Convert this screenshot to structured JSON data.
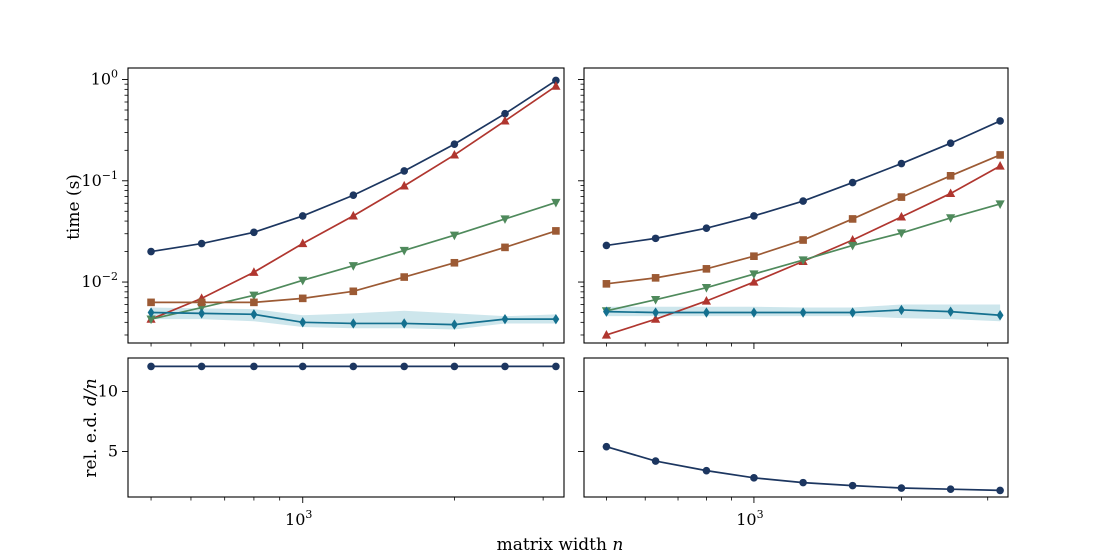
{
  "figure": {
    "xlabel": "matrix width",
    "xlabel_var": "n",
    "top_ylabel": "time (s)",
    "bottom_ylabel_prefix": "rel. e.d.",
    "bottom_ylabel_var": "d/n"
  },
  "colors": {
    "navy": "#1c3660",
    "red": "#b0362f",
    "green": "#4f8a5c",
    "brown": "#9c5a34",
    "teal": "#14708f",
    "band": "#bcdde6"
  },
  "chart_data": [
    {
      "panel": "top-left",
      "type": "line",
      "xscale": "log",
      "yscale": "log",
      "xlim": [
        450,
        3300
      ],
      "ylim": [
        0.0025,
        1.3
      ],
      "ylabel": "time (s)",
      "x": [
        500,
        630,
        800,
        1000,
        1260,
        1590,
        2000,
        2520,
        3180
      ],
      "yticks": [
        {
          "value": 1,
          "base": "10",
          "exp": "0"
        },
        {
          "value": 0.1,
          "base": "10",
          "exp": "−1"
        },
        {
          "value": 0.01,
          "base": "10",
          "exp": "−2"
        }
      ],
      "series": [
        {
          "name": "navy-circle",
          "color": "#1c3660",
          "marker": "circle",
          "values": [
            0.02,
            0.024,
            0.031,
            0.045,
            0.072,
            0.125,
            0.23,
            0.46,
            0.98
          ]
        },
        {
          "name": "red-triangle-up",
          "color": "#b0362f",
          "marker": "triangle-up",
          "values": [
            0.0043,
            0.0069,
            0.0125,
            0.024,
            0.045,
            0.089,
            0.18,
            0.39,
            0.86
          ]
        },
        {
          "name": "green-triangle-down",
          "color": "#4f8a5c",
          "marker": "triangle-down",
          "values": [
            0.0043,
            0.0056,
            0.0074,
            0.0104,
            0.0145,
            0.0205,
            0.029,
            0.042,
            0.061
          ]
        },
        {
          "name": "brown-square",
          "color": "#9c5a34",
          "marker": "square",
          "values": [
            0.0063,
            0.0063,
            0.0063,
            0.0069,
            0.0081,
            0.0112,
            0.0155,
            0.022,
            0.032
          ]
        },
        {
          "name": "teal-diamond",
          "color": "#14708f",
          "marker": "diamond",
          "values": [
            0.005,
            0.0049,
            0.0048,
            0.004,
            0.0039,
            0.0039,
            0.0038,
            0.0043,
            0.0043
          ],
          "band_low": [
            0.0043,
            0.0043,
            0.0041,
            0.0036,
            0.0035,
            0.0035,
            0.0034,
            0.0039,
            0.0039
          ],
          "band_high": [
            0.0056,
            0.0055,
            0.0054,
            0.0047,
            0.0049,
            0.0052,
            0.0049,
            0.0046,
            0.0048
          ]
        }
      ]
    },
    {
      "panel": "top-right",
      "type": "line",
      "xscale": "log",
      "yscale": "log",
      "xlim": [
        450,
        3300
      ],
      "ylim": [
        0.0025,
        1.3
      ],
      "x": [
        500,
        630,
        800,
        1000,
        1260,
        1590,
        2000,
        2520,
        3180
      ],
      "series": [
        {
          "name": "navy-circle",
          "color": "#1c3660",
          "marker": "circle",
          "values": [
            0.023,
            0.027,
            0.034,
            0.045,
            0.063,
            0.096,
            0.148,
            0.235,
            0.39
          ]
        },
        {
          "name": "brown-square",
          "color": "#9c5a34",
          "marker": "square",
          "values": [
            0.0096,
            0.011,
            0.0135,
            0.018,
            0.026,
            0.042,
            0.069,
            0.112,
            0.18
          ]
        },
        {
          "name": "red-triangle-up",
          "color": "#b0362f",
          "marker": "triangle-up",
          "values": [
            0.003,
            0.0043,
            0.0065,
            0.01,
            0.016,
            0.026,
            0.044,
            0.075,
            0.14
          ]
        },
        {
          "name": "green-triangle-down",
          "color": "#4f8a5c",
          "marker": "triangle-down",
          "values": [
            0.0052,
            0.0067,
            0.0088,
            0.012,
            0.0165,
            0.023,
            0.0305,
            0.043,
            0.059
          ]
        },
        {
          "name": "teal-diamond",
          "color": "#14708f",
          "marker": "diamond",
          "values": [
            0.0051,
            0.005,
            0.005,
            0.005,
            0.005,
            0.005,
            0.0053,
            0.0051,
            0.0047
          ],
          "band_low": [
            0.0046,
            0.0046,
            0.0046,
            0.0046,
            0.0046,
            0.0046,
            0.0044,
            0.0043,
            0.0041
          ],
          "band_high": [
            0.0057,
            0.0057,
            0.0057,
            0.0057,
            0.0056,
            0.0056,
            0.006,
            0.006,
            0.006
          ]
        }
      ]
    },
    {
      "panel": "bottom-left",
      "type": "line",
      "xscale": "log",
      "yscale": "linear",
      "xlim": [
        450,
        3300
      ],
      "ylim": [
        1.2,
        12.8
      ],
      "ylabel": "rel. e.d. d/n",
      "x": [
        500,
        630,
        800,
        1000,
        1260,
        1590,
        2000,
        2520,
        3180
      ],
      "yticks": [
        {
          "value": 10,
          "label": "10"
        },
        {
          "value": 5,
          "label": "5"
        }
      ],
      "xticks": [
        {
          "value": 1000,
          "base": "10",
          "exp": "3"
        }
      ],
      "series": [
        {
          "name": "navy-circle",
          "color": "#1c3660",
          "marker": "circle",
          "values": [
            12.1,
            12.1,
            12.1,
            12.1,
            12.1,
            12.1,
            12.1,
            12.1,
            12.1
          ]
        }
      ]
    },
    {
      "panel": "bottom-right",
      "type": "line",
      "xscale": "log",
      "yscale": "linear",
      "xlim": [
        450,
        3300
      ],
      "ylim": [
        1.2,
        12.8
      ],
      "x": [
        500,
        630,
        800,
        1000,
        1260,
        1590,
        2000,
        2520,
        3180
      ],
      "xticks": [
        {
          "value": 1000,
          "base": "10",
          "exp": "3"
        }
      ],
      "series": [
        {
          "name": "navy-circle",
          "color": "#1c3660",
          "marker": "circle",
          "values": [
            5.4,
            4.2,
            3.4,
            2.8,
            2.4,
            2.15,
            1.95,
            1.85,
            1.75
          ]
        }
      ]
    }
  ]
}
